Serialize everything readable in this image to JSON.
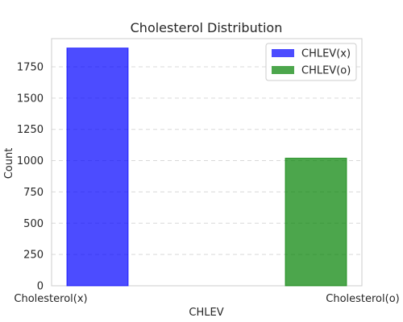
{
  "chart_data": {
    "type": "bar",
    "title": "Cholesterol Distribution",
    "xlabel": "CHLEV",
    "ylabel": "Count",
    "ylim": [
      0,
      1975
    ],
    "yticks": [
      0,
      250,
      500,
      750,
      1000,
      1250,
      1500,
      1750
    ],
    "grid": "y-dashed",
    "legend_position": "top-right",
    "categories": [
      "Cholesterol(x)",
      "Cholesterol(o)"
    ],
    "series": [
      {
        "name": "CHLEV(x)",
        "category": "Cholesterol(x)",
        "value": 1900,
        "color": "#0000ff"
      },
      {
        "name": "CHLEV(o)",
        "category": "Cholesterol(o)",
        "value": 1020,
        "color": "#008000"
      }
    ]
  }
}
